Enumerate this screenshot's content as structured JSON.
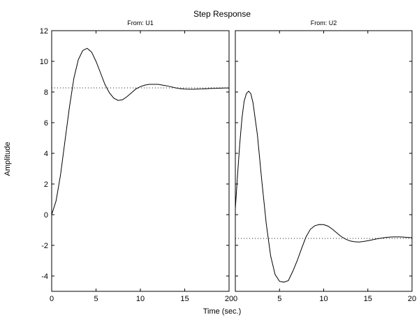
{
  "title": "Step Response",
  "xlabel": "Time (sec.)",
  "ylabel": "Amplitude",
  "chart_data": [
    {
      "type": "line",
      "subtitle": "From: U1",
      "xlim": [
        0,
        20
      ],
      "ylim": [
        -5,
        12
      ],
      "xticks": [
        0,
        5,
        10,
        15,
        20
      ],
      "yticks": [
        -4,
        -2,
        0,
        2,
        4,
        6,
        8,
        10,
        12
      ],
      "xtick_labels": [
        "0",
        "5",
        "10",
        "15",
        "20"
      ],
      "ytick_labels": [
        "-4",
        "-2",
        "0",
        "2",
        "4",
        "6",
        "8",
        "10",
        "12"
      ],
      "grid": false,
      "series": [
        {
          "style": "solid",
          "x": [
            0,
            0.5,
            1,
            1.5,
            2,
            2.5,
            3,
            3.5,
            4,
            4.5,
            5,
            5.5,
            6,
            6.5,
            7,
            7.5,
            8,
            8.5,
            9,
            9.5,
            10,
            10.5,
            11,
            11.5,
            12,
            12.5,
            13,
            13.5,
            14,
            14.5,
            15,
            15.5,
            16,
            16.5,
            17,
            17.5,
            18,
            18.5,
            19,
            19.5,
            20
          ],
          "values": [
            0,
            0.9,
            2.6,
            4.8,
            7.0,
            8.9,
            10.1,
            10.7,
            10.85,
            10.6,
            10.0,
            9.25,
            8.5,
            7.95,
            7.6,
            7.45,
            7.5,
            7.7,
            7.95,
            8.2,
            8.35,
            8.45,
            8.5,
            8.5,
            8.5,
            8.45,
            8.4,
            8.33,
            8.27,
            8.22,
            8.19,
            8.18,
            8.18,
            8.19,
            8.2,
            8.22,
            8.23,
            8.24,
            8.25,
            8.26,
            8.26
          ]
        },
        {
          "style": "dotted",
          "x": [
            0,
            20
          ],
          "values": [
            8.27,
            8.27
          ]
        }
      ]
    },
    {
      "type": "line",
      "subtitle": "From: U2",
      "xlim": [
        0,
        20
      ],
      "ylim": [
        -5,
        12
      ],
      "xticks": [
        0,
        5,
        10,
        15,
        20
      ],
      "yticks": [
        -4,
        -2,
        0,
        2,
        4,
        6,
        8,
        10,
        12
      ],
      "xtick_labels": [
        "0",
        "5",
        "10",
        "15",
        "20"
      ],
      "ytick_labels": [],
      "grid": false,
      "series": [
        {
          "style": "solid",
          "x": [
            0,
            0.25,
            0.5,
            0.75,
            1,
            1.25,
            1.5,
            1.75,
            2,
            2.5,
            3,
            3.5,
            4,
            4.5,
            5,
            5.5,
            6,
            6.5,
            7,
            7.5,
            8,
            8.5,
            9,
            9.5,
            10,
            10.5,
            11,
            11.5,
            12,
            12.5,
            13,
            13.5,
            14,
            14.5,
            15,
            15.5,
            16,
            16.5,
            17,
            17.5,
            18,
            18.5,
            19,
            19.5,
            20
          ],
          "values": [
            0.4,
            2.6,
            4.6,
            6.3,
            7.4,
            7.9,
            8.05,
            7.9,
            7.3,
            5.2,
            2.2,
            -0.6,
            -2.7,
            -3.9,
            -4.35,
            -4.4,
            -4.3,
            -3.7,
            -3.0,
            -2.2,
            -1.45,
            -0.95,
            -0.72,
            -0.64,
            -0.65,
            -0.75,
            -0.95,
            -1.2,
            -1.43,
            -1.6,
            -1.72,
            -1.77,
            -1.78,
            -1.75,
            -1.7,
            -1.64,
            -1.58,
            -1.53,
            -1.49,
            -1.46,
            -1.45,
            -1.45,
            -1.46,
            -1.48,
            -1.5
          ]
        },
        {
          "style": "dotted",
          "x": [
            0,
            20
          ],
          "values": [
            -1.55,
            -1.55
          ]
        }
      ]
    }
  ]
}
